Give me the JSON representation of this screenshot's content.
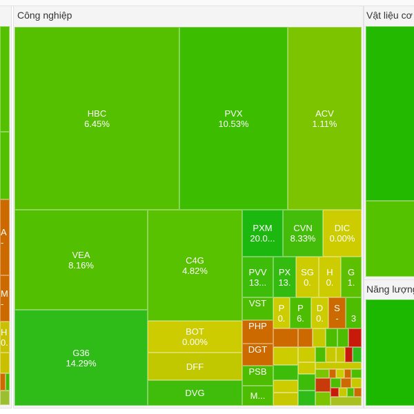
{
  "sectors": {
    "industrial": {
      "title": "Công nghiệp"
    },
    "materials": {
      "title": "Vật liệu cơ"
    },
    "energy": {
      "title": "Năng lượng"
    }
  },
  "tiles": {
    "HBC": {
      "ticker": "HBC",
      "change": "6.45%"
    },
    "PVX": {
      "ticker": "PVX",
      "change": "10.53%"
    },
    "ACV": {
      "ticker": "ACV",
      "change": "1.11%"
    },
    "VEA": {
      "ticker": "VEA",
      "change": "8.16%"
    },
    "G36": {
      "ticker": "G36",
      "change": "14.29%"
    },
    "C4G": {
      "ticker": "C4G",
      "change": "4.82%"
    },
    "BOT": {
      "ticker": "BOT",
      "change": "0.00%"
    },
    "DFF": {
      "ticker": "DFF"
    },
    "DVG": {
      "ticker": "DVG"
    },
    "PXM": {
      "ticker": "PXM",
      "change": "20.0..."
    },
    "CVN": {
      "ticker": "CVN",
      "change": "8.33%"
    },
    "DIC": {
      "ticker": "DIC",
      "change": "0.00%"
    },
    "PVV": {
      "ticker": "PVV",
      "change": "13..."
    },
    "PX": {
      "ticker": "PX",
      "change": "13."
    },
    "SG": {
      "ticker": "SG",
      "change": "0."
    },
    "H": {
      "ticker": "H",
      "change": "0."
    },
    "G": {
      "ticker": "G",
      "change": "1."
    },
    "VST": {
      "ticker": "VST"
    },
    "PHP": {
      "ticker": "PHP"
    },
    "DGT": {
      "ticker": "DGT"
    },
    "PSB": {
      "ticker": "PSB"
    },
    "M": {
      "ticker": "M..."
    },
    "P1": {
      "ticker": "P",
      "change": "0."
    },
    "P2": {
      "ticker": "P",
      "change": "6."
    },
    "D": {
      "ticker": "D",
      "change": "0."
    },
    "S": {
      "ticker": "S",
      "change": "-"
    },
    "N3": {
      "ticker": "3"
    },
    "L1": {
      "ticker": "A",
      "change": "-"
    },
    "L2": {
      "ticker": "M",
      "change": "-"
    },
    "L3": {
      "ticker": "H",
      "change": "0."
    }
  },
  "colors": {
    "strong_green": "#22b80f",
    "green": "#4cbf00",
    "light_green": "#7cc400",
    "yellow": "#cccc00",
    "orange": "#d07000",
    "red": "#c81a0a"
  }
}
